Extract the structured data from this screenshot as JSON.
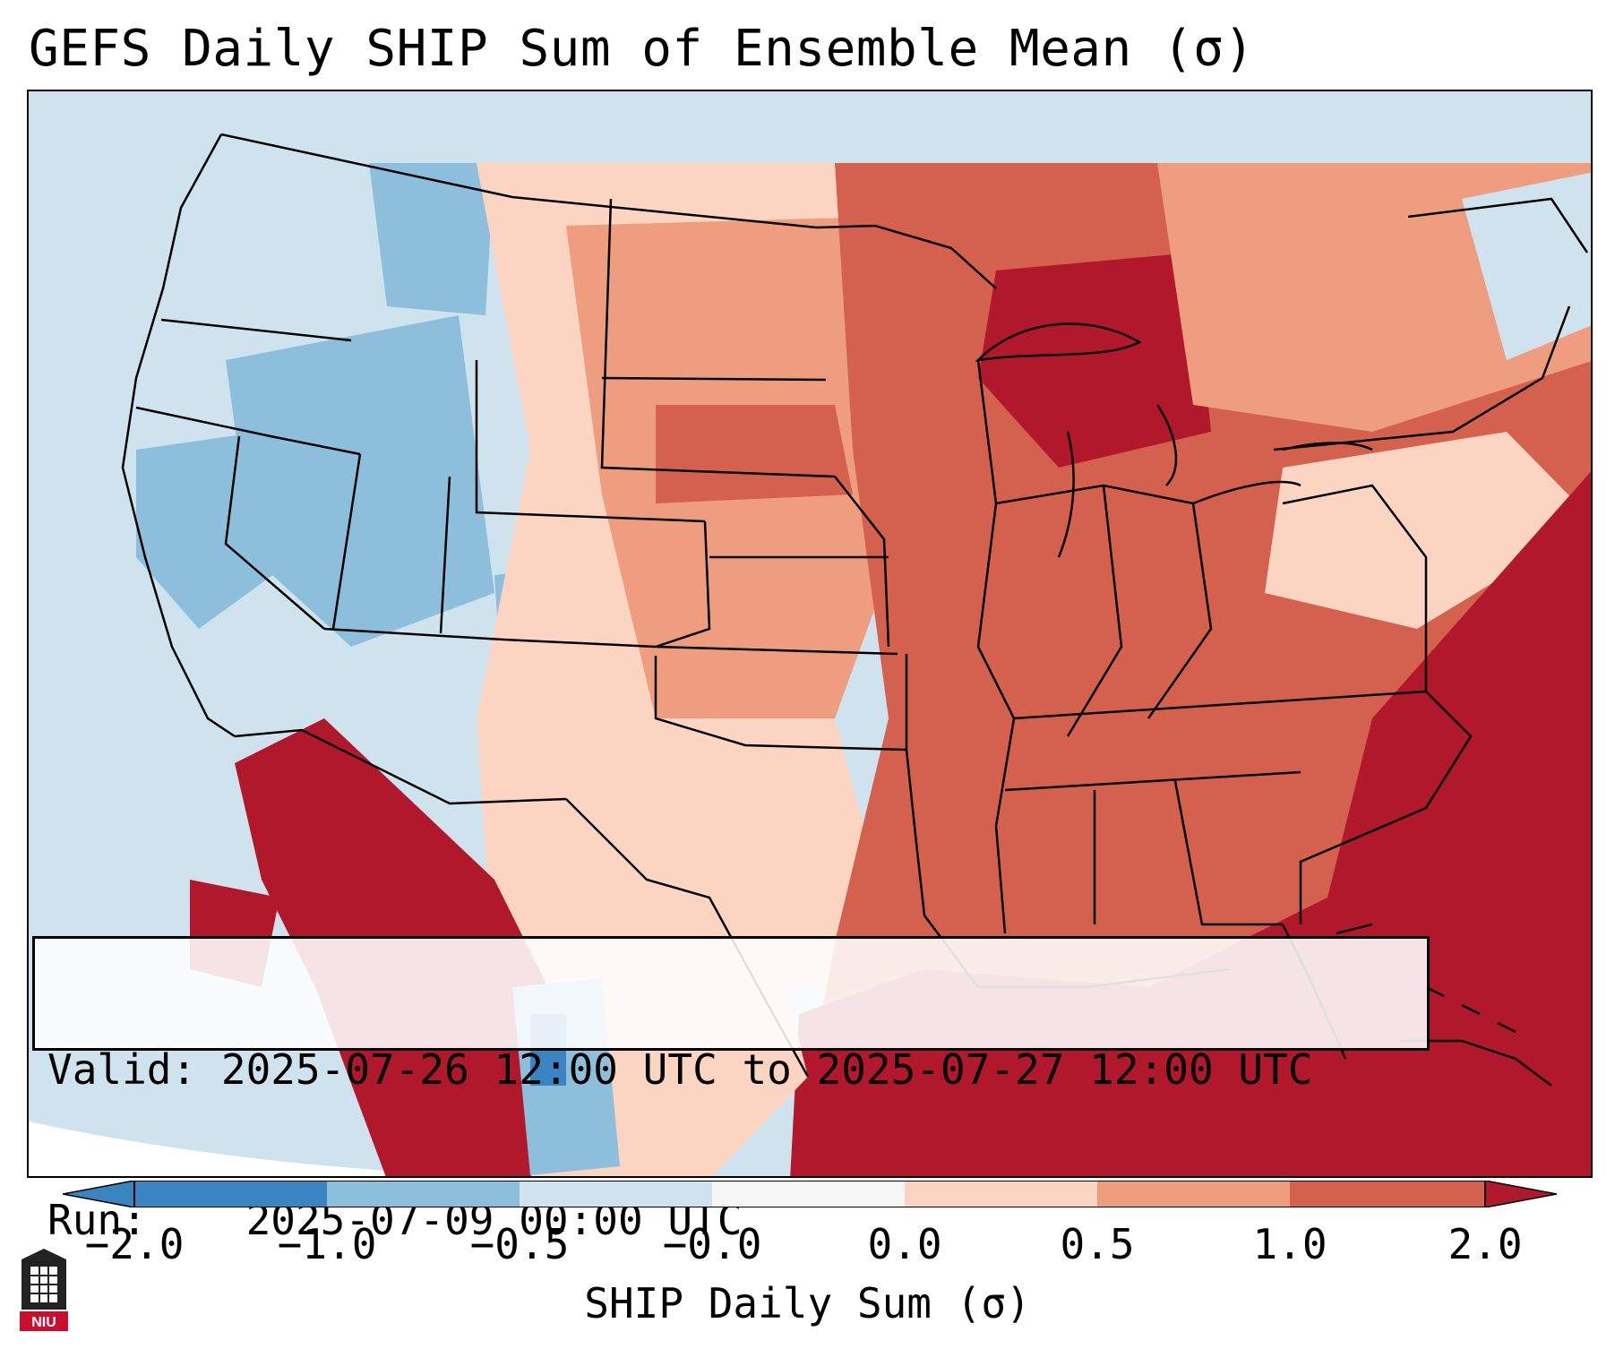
{
  "title": "GEFS Daily SHIP Sum of Ensemble Mean (σ)",
  "info": {
    "valid_label": "Valid:",
    "valid_value": "2025-07-26 12:00 UTC to 2025-07-27 12:00 UTC",
    "run_label": "Run:",
    "run_value": "2025-07-09 00:00 UTC"
  },
  "colorbar": {
    "label": "SHIP Daily Sum (σ)",
    "ticks": [
      "−2.0",
      "−1.0",
      "−0.5",
      "−0.0",
      "0.0",
      "0.5",
      "1.0",
      "2.0"
    ],
    "colors": [
      "#3b84c2",
      "#8dbfdd",
      "#cfe3ef",
      "#f6f6f6",
      "#fbd5c1",
      "#ef9d7f",
      "#d4614d",
      "#b2182b"
    ],
    "extend": "both"
  },
  "logo_text": "NIU",
  "colors": {
    "ocean": "#cfe3ef",
    "border": "#000000"
  }
}
